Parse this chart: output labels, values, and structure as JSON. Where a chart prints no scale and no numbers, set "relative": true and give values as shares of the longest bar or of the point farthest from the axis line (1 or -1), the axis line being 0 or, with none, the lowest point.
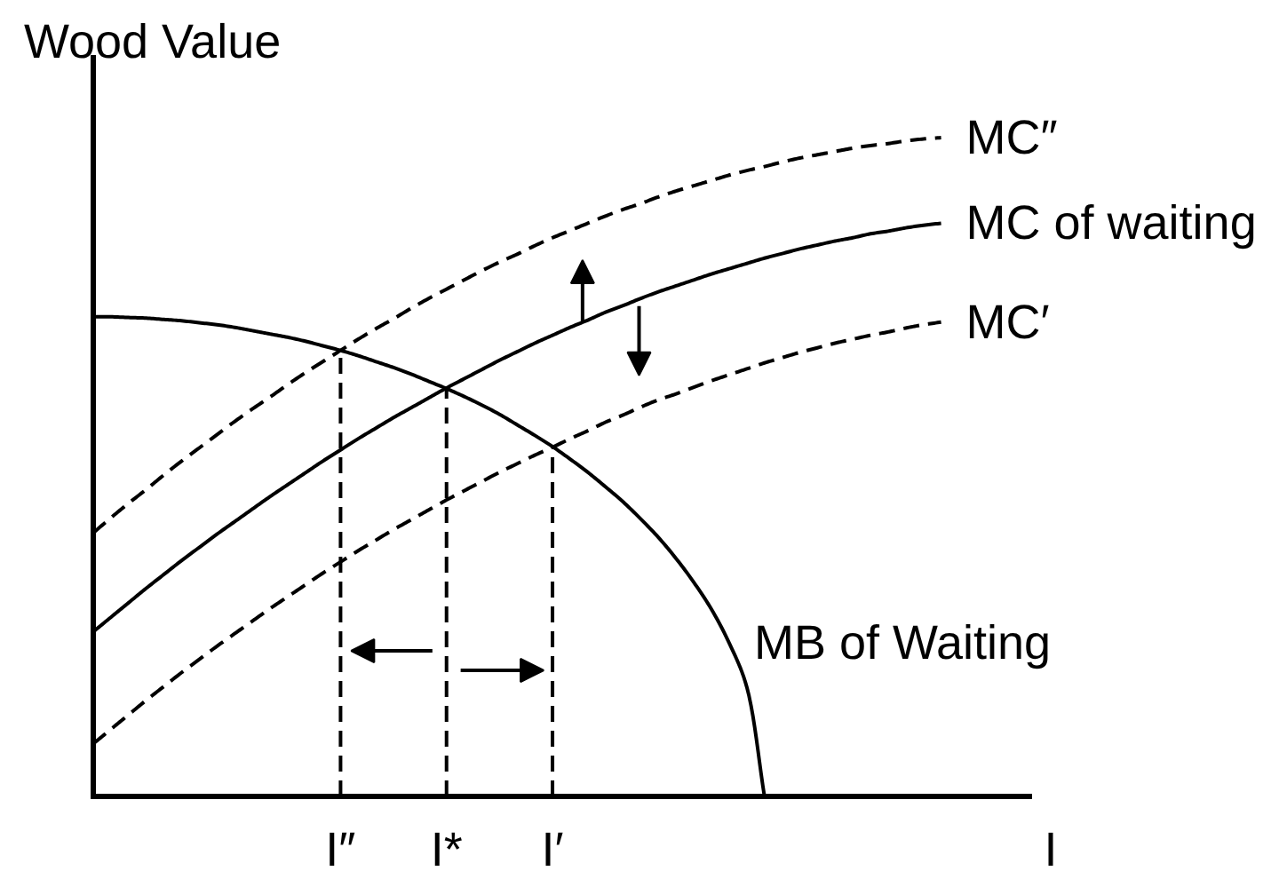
{
  "chart_data": {
    "type": "line",
    "relative": true,
    "ylabel": "Wood Value",
    "xlabel": "I",
    "categories": [
      null,
      null,
      null,
      null,
      null,
      null,
      null,
      null,
      null,
      null,
      null,
      null,
      null,
      null,
      "I″",
      null,
      null,
      null,
      null,
      null,
      "I*",
      null,
      null,
      null,
      null,
      null,
      "I′",
      null,
      null,
      null,
      null,
      null,
      null,
      null,
      null,
      null,
      null,
      null,
      null,
      null,
      null,
      null,
      null,
      null,
      null,
      null,
      null,
      null,
      null,
      null,
      null,
      null,
      null
    ],
    "series": [
      {
        "name": "MC″",
        "color": "#000000",
        "line_style": "dashed",
        "values": [
          0.4,
          0.423,
          0.445,
          0.466,
          0.488,
          0.509,
          0.529,
          0.549,
          0.569,
          0.588,
          0.606,
          0.625,
          0.643,
          0.66,
          0.677,
          0.694,
          0.71,
          0.725,
          0.741,
          0.756,
          0.77,
          0.784,
          0.798,
          0.811,
          0.823,
          0.836,
          0.848,
          0.859,
          0.87,
          0.881,
          0.891,
          0.9,
          0.91,
          0.919,
          0.927,
          0.935,
          0.943,
          0.95,
          0.956,
          0.963,
          0.969,
          0.974,
          0.979,
          0.984,
          0.988,
          0.991,
          0.995,
          0.998,
          1,
          null,
          null,
          null,
          null
        ]
      },
      {
        "name": "MC of waiting",
        "color": "#000000",
        "line_style": "solid",
        "values": [
          0.25,
          0.272,
          0.294,
          0.316,
          0.337,
          0.358,
          0.378,
          0.398,
          0.417,
          0.436,
          0.455,
          0.473,
          0.491,
          0.509,
          0.526,
          0.543,
          0.559,
          0.575,
          0.59,
          0.605,
          0.62,
          0.634,
          0.648,
          0.662,
          0.675,
          0.688,
          0.7,
          0.712,
          0.723,
          0.735,
          0.745,
          0.756,
          0.766,
          0.775,
          0.784,
          0.793,
          0.801,
          0.809,
          0.817,
          0.824,
          0.831,
          0.837,
          0.843,
          0.848,
          0.854,
          0.858,
          0.863,
          0.867,
          0.87,
          null,
          null,
          null,
          null
        ]
      },
      {
        "name": "MC′",
        "color": "#000000",
        "line_style": "dashed",
        "values": [
          0.08,
          0.102,
          0.124,
          0.146,
          0.167,
          0.188,
          0.208,
          0.228,
          0.247,
          0.266,
          0.285,
          0.303,
          0.321,
          0.339,
          0.356,
          0.373,
          0.389,
          0.405,
          0.42,
          0.435,
          0.45,
          0.464,
          0.478,
          0.492,
          0.505,
          0.518,
          0.53,
          0.543,
          0.555,
          0.568,
          0.579,
          0.591,
          0.602,
          0.611,
          0.621,
          0.631,
          0.64,
          0.649,
          0.658,
          0.666,
          0.674,
          0.681,
          0.688,
          0.694,
          0.7,
          0.705,
          0.711,
          0.716,
          0.72,
          null,
          null,
          null,
          null
        ]
      },
      {
        "name": "MB of Waiting",
        "color": "#000000",
        "line_style": "solid",
        "values": [
          0.728,
          0.728,
          0.727,
          0.726,
          0.724,
          0.722,
          0.719,
          0.716,
          0.712,
          0.707,
          0.702,
          0.697,
          0.691,
          0.684,
          0.677,
          0.669,
          0.66,
          0.651,
          0.641,
          0.63,
          0.619,
          0.607,
          0.594,
          0.58,
          0.564,
          0.548,
          0.531,
          0.512,
          0.492,
          0.47,
          0.447,
          0.421,
          0.393,
          0.361,
          0.325,
          0.284,
          0.233,
          0.166,
          0,
          null,
          null,
          null,
          null,
          null,
          null,
          null,
          null,
          null,
          null,
          null,
          null,
          null,
          null
        ]
      }
    ],
    "ref_lines": [
      {
        "axis": "x",
        "value": "I″",
        "line_style": "dashed",
        "color": "#000000"
      },
      {
        "axis": "x",
        "value": "I*",
        "line_style": "dashed",
        "color": "#000000"
      },
      {
        "axis": "x",
        "value": "I′",
        "line_style": "dashed",
        "color": "#000000"
      }
    ],
    "grid": false,
    "tick_labels": "x"
  }
}
